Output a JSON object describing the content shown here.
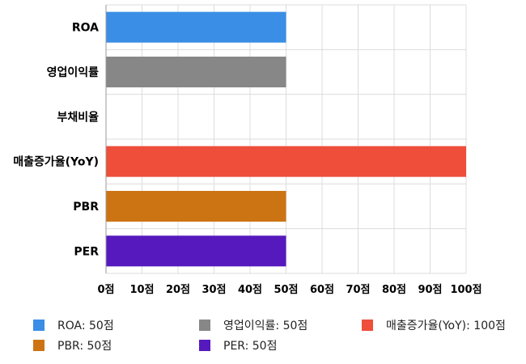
{
  "chart_data": {
    "type": "bar",
    "orientation": "horizontal",
    "categories": [
      "ROA",
      "영업이익률",
      "부채비율",
      "매출증가율(YoY)",
      "PBR",
      "PER"
    ],
    "values": [
      50,
      50,
      0,
      100,
      50,
      50
    ],
    "colors": [
      "#3a8ee6",
      "#878787",
      "#2ea84f",
      "#ee4e3a",
      "#cc7414",
      "#5619bd"
    ],
    "xlim": [
      0,
      100
    ],
    "xticks": [
      0,
      10,
      20,
      30,
      40,
      50,
      60,
      70,
      80,
      90,
      100
    ],
    "tick_suffix": "점",
    "grid": true,
    "legend_position": "bottom",
    "legend": [
      {
        "label": "ROA: 50점",
        "color": "#3a8ee6"
      },
      {
        "label": "영업이익률: 50점",
        "color": "#878787"
      },
      {
        "label": "매출증가율(YoY): 100점",
        "color": "#ee4e3a"
      },
      {
        "label": "PBR: 50점",
        "color": "#cc7414"
      },
      {
        "label": "PER: 50점",
        "color": "#5619bd"
      }
    ]
  }
}
